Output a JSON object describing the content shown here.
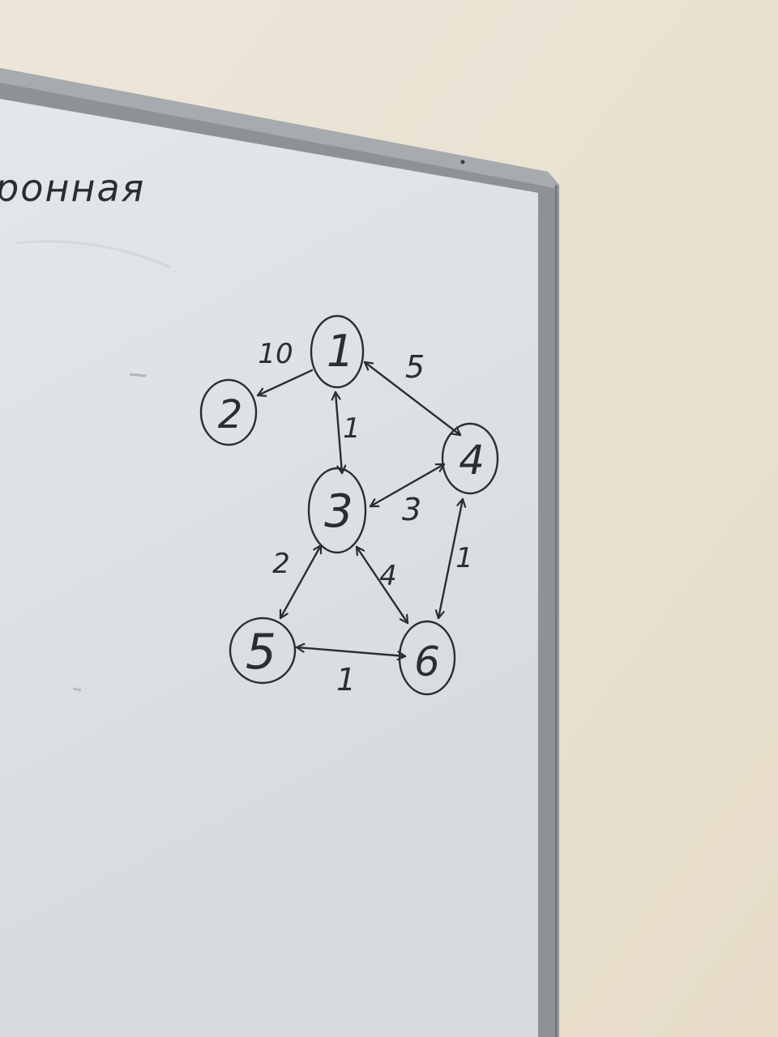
{
  "board": {
    "heading_fragment": "ронная"
  },
  "graph": {
    "nodes": [
      {
        "id": "1",
        "label": "1"
      },
      {
        "id": "2",
        "label": "2"
      },
      {
        "id": "3",
        "label": "3"
      },
      {
        "id": "4",
        "label": "4"
      },
      {
        "id": "5",
        "label": "5"
      },
      {
        "id": "6",
        "label": "6"
      }
    ],
    "edges": [
      {
        "from": "1",
        "to": "2",
        "weight": "10",
        "direction": "one-way"
      },
      {
        "from": "1",
        "to": "4",
        "weight": "5",
        "direction": "both"
      },
      {
        "from": "1",
        "to": "3",
        "weight": "1",
        "direction": "both"
      },
      {
        "from": "4",
        "to": "3",
        "weight": "3",
        "direction": "both"
      },
      {
        "from": "3",
        "to": "5",
        "weight": "2",
        "direction": "both"
      },
      {
        "from": "3",
        "to": "6",
        "weight": "4",
        "direction": "both"
      },
      {
        "from": "4",
        "to": "6",
        "weight": "1",
        "direction": "both"
      },
      {
        "from": "5",
        "to": "6",
        "weight": "1",
        "direction": "both"
      }
    ]
  },
  "colors": {
    "wall": "#e9e1d3",
    "board_surface": "#dfe3e6",
    "frame": "#8e9296",
    "marker_ink": "#2a2d33"
  }
}
